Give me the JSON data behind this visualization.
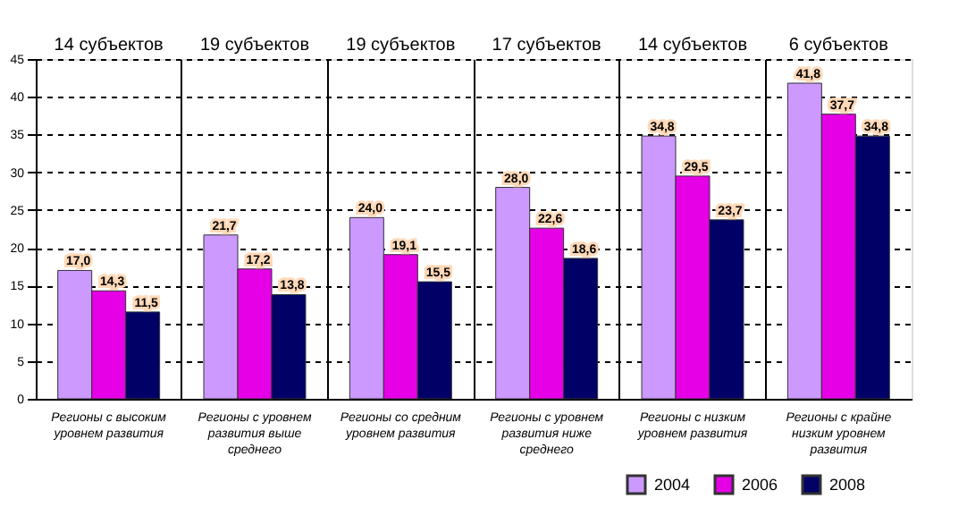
{
  "chart_data": {
    "type": "bar",
    "categories": [
      "Регионы с высоким уровнем развития",
      "Регионы с уровнем развития выше среднего",
      "Регионы со средним уровнем развития",
      "Регионы с уровнем развития ниже среднего",
      "Регионы с низким уровнем развития",
      "Регионы с крайне низким уровнем развития"
    ],
    "series": [
      {
        "name": "2004",
        "color": "#cc99ff",
        "values": [
          17.0,
          21.7,
          24.0,
          28.0,
          34.8,
          41.8
        ],
        "value_labels": [
          "17,0",
          "21,7",
          "24,0",
          "28,0",
          "34,8",
          "41,8"
        ]
      },
      {
        "name": "2006",
        "color": "#e600e6",
        "values": [
          14.3,
          17.2,
          19.1,
          22.6,
          29.5,
          37.7
        ],
        "value_labels": [
          "14,3",
          "17,2",
          "19,1",
          "22,6",
          "29,5",
          "37,7"
        ]
      },
      {
        "name": "2008",
        "color": "#000066",
        "values": [
          11.5,
          13.8,
          15.5,
          18.6,
          23.7,
          34.8
        ],
        "value_labels": [
          "11,5",
          "13,8",
          "15,5",
          "18,6",
          "23,7",
          "34,8"
        ]
      }
    ],
    "annotations": [
      "14 субъектов",
      "19 субъектов",
      "19 субъектов",
      "17 субъектов",
      "14 субъектов",
      "6 субъектов"
    ],
    "ylim": [
      0,
      45
    ],
    "yticks": [
      0,
      5,
      10,
      15,
      20,
      25,
      30,
      35,
      40,
      45
    ],
    "grid": true,
    "legend": "bottom right"
  }
}
